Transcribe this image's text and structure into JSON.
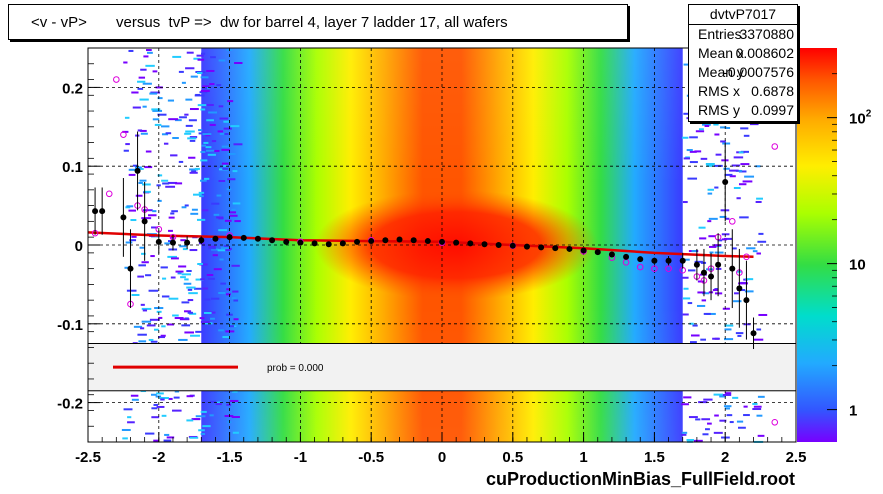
{
  "title": "<v - vP>       versus  tvP =>  dw for barrel 4, layer 7 ladder 17, all wafers",
  "stats": {
    "name": "dvtvP7017",
    "rows": [
      {
        "label": "Entries",
        "value": "3370880"
      },
      {
        "label": "Mean x",
        "value": "0.008602"
      },
      {
        "label": "Mean y",
        "value": "-0.0007576"
      },
      {
        "label": "RMS x",
        "value": "0.6878"
      },
      {
        "label": "RMS y",
        "value": "0.0997"
      }
    ]
  },
  "fit_legend": {
    "text": "prob = 0.000",
    "color": "#e00000"
  },
  "footer": "cuProductionMinBias_FullField.root",
  "chart_data": {
    "type": "heatmap",
    "xlim": [
      -2.5,
      2.5
    ],
    "ylim": [
      -0.25,
      0.25
    ],
    "x_ticks": [
      "-2.5",
      "-2",
      "-1.5",
      "-1",
      "-0.5",
      "0",
      "0.5",
      "1",
      "1.5",
      "2",
      "2.5"
    ],
    "x_tick_values": [
      -2.5,
      -2,
      -1.5,
      -1,
      -0.5,
      0,
      0.5,
      1,
      1.5,
      2,
      2.5
    ],
    "y_ticks": [
      "0.2",
      "0.1",
      "0",
      "-0.1",
      "-0.2"
    ],
    "y_tick_values": [
      0.2,
      0.1,
      0,
      -0.1,
      -0.2
    ],
    "colorbar_ticks": [
      {
        "label": "10",
        "sup": "2",
        "value": 100
      },
      {
        "label": "10",
        "sup": "",
        "value": 10
      },
      {
        "label": "1",
        "sup": "",
        "value": 1
      }
    ],
    "grid": true,
    "mean_points": [
      {
        "x": -2.45,
        "y": 0.043,
        "err": 0.03
      },
      {
        "x": -2.4,
        "y": 0.043,
        "err": 0.03
      },
      {
        "x": -2.25,
        "y": 0.035,
        "err": 0.05
      },
      {
        "x": -2.2,
        "y": -0.03,
        "err": 0.05
      },
      {
        "x": -2.15,
        "y": 0.094,
        "err": 0.05
      },
      {
        "x": -2.1,
        "y": 0.03,
        "err": 0.05
      },
      {
        "x": -2.0,
        "y": 0.004,
        "err": 0.015
      },
      {
        "x": -1.9,
        "y": 0.003,
        "err": 0.01
      },
      {
        "x": -1.8,
        "y": 0.003,
        "err": 0.008
      },
      {
        "x": -1.7,
        "y": 0.006,
        "err": 0.005
      },
      {
        "x": -1.6,
        "y": 0.008,
        "err": 0.003
      },
      {
        "x": -1.5,
        "y": 0.01,
        "err": 0.002
      },
      {
        "x": -1.4,
        "y": 0.009,
        "err": 0.002
      },
      {
        "x": -1.3,
        "y": 0.008,
        "err": 0.002
      },
      {
        "x": -1.2,
        "y": 0.006,
        "err": 0.002
      },
      {
        "x": -1.1,
        "y": 0.004,
        "err": 0.002
      },
      {
        "x": -1.0,
        "y": 0.003,
        "err": 0.002
      },
      {
        "x": -0.9,
        "y": 0.002,
        "err": 0.002
      },
      {
        "x": -0.8,
        "y": 0.001,
        "err": 0.002
      },
      {
        "x": -0.7,
        "y": 0.002,
        "err": 0.002
      },
      {
        "x": -0.6,
        "y": 0.004,
        "err": 0.002
      },
      {
        "x": -0.5,
        "y": 0.005,
        "err": 0.002
      },
      {
        "x": -0.4,
        "y": 0.006,
        "err": 0.002
      },
      {
        "x": -0.3,
        "y": 0.007,
        "err": 0.002
      },
      {
        "x": -0.2,
        "y": 0.006,
        "err": 0.002
      },
      {
        "x": -0.1,
        "y": 0.005,
        "err": 0.002
      },
      {
        "x": 0.0,
        "y": 0.004,
        "err": 0.002
      },
      {
        "x": 0.1,
        "y": 0.003,
        "err": 0.002
      },
      {
        "x": 0.2,
        "y": 0.002,
        "err": 0.002
      },
      {
        "x": 0.3,
        "y": 0.001,
        "err": 0.002
      },
      {
        "x": 0.4,
        "y": 0.0,
        "err": 0.002
      },
      {
        "x": 0.5,
        "y": -0.001,
        "err": 0.002
      },
      {
        "x": 0.6,
        "y": -0.002,
        "err": 0.002
      },
      {
        "x": 0.7,
        "y": -0.003,
        "err": 0.002
      },
      {
        "x": 0.8,
        "y": -0.004,
        "err": 0.002
      },
      {
        "x": 0.9,
        "y": -0.005,
        "err": 0.002
      },
      {
        "x": 1.0,
        "y": -0.007,
        "err": 0.002
      },
      {
        "x": 1.1,
        "y": -0.009,
        "err": 0.002
      },
      {
        "x": 1.2,
        "y": -0.012,
        "err": 0.002
      },
      {
        "x": 1.3,
        "y": -0.015,
        "err": 0.003
      },
      {
        "x": 1.4,
        "y": -0.018,
        "err": 0.003
      },
      {
        "x": 1.5,
        "y": -0.02,
        "err": 0.004
      },
      {
        "x": 1.6,
        "y": -0.02,
        "err": 0.006
      },
      {
        "x": 1.7,
        "y": -0.02,
        "err": 0.01
      },
      {
        "x": 1.8,
        "y": -0.025,
        "err": 0.02
      },
      {
        "x": 1.85,
        "y": -0.035,
        "err": 0.03
      },
      {
        "x": 1.9,
        "y": -0.04,
        "err": 0.03
      },
      {
        "x": 1.95,
        "y": -0.025,
        "err": 0.04
      },
      {
        "x": 2.0,
        "y": 0.08,
        "err": 0.05
      },
      {
        "x": 2.05,
        "y": -0.03,
        "err": 0.05
      },
      {
        "x": 2.1,
        "y": -0.055,
        "err": 0.05
      },
      {
        "x": 2.15,
        "y": -0.07,
        "err": 0.05
      },
      {
        "x": 2.2,
        "y": -0.112,
        "err": 0.02
      }
    ],
    "rms_points": [
      {
        "x": -2.45,
        "y": 0.015
      },
      {
        "x": -2.35,
        "y": 0.065
      },
      {
        "x": -2.3,
        "y": 0.21
      },
      {
        "x": -2.25,
        "y": 0.14
      },
      {
        "x": -2.2,
        "y": -0.075
      },
      {
        "x": -2.15,
        "y": 0.05
      },
      {
        "x": -2.1,
        "y": 0.045
      },
      {
        "x": -2.0,
        "y": 0.02
      },
      {
        "x": -1.9,
        "y": 0.01
      },
      {
        "x": -1.5,
        "y": 0.012
      },
      {
        "x": -1.0,
        "y": 0.004
      },
      {
        "x": -0.5,
        "y": 0.006
      },
      {
        "x": 0.0,
        "y": 0.003
      },
      {
        "x": 0.5,
        "y": -0.001
      },
      {
        "x": 1.0,
        "y": -0.008
      },
      {
        "x": 1.2,
        "y": -0.016
      },
      {
        "x": 1.3,
        "y": -0.022
      },
      {
        "x": 1.4,
        "y": -0.028
      },
      {
        "x": 1.5,
        "y": -0.03
      },
      {
        "x": 1.6,
        "y": -0.03
      },
      {
        "x": 1.7,
        "y": -0.032
      },
      {
        "x": 1.8,
        "y": -0.04
      },
      {
        "x": 1.85,
        "y": -0.045
      },
      {
        "x": 1.9,
        "y": -0.03
      },
      {
        "x": 1.95,
        "y": 0.01
      },
      {
        "x": 2.05,
        "y": 0.03
      },
      {
        "x": 2.1,
        "y": -0.035
      },
      {
        "x": 2.15,
        "y": -0.015
      },
      {
        "x": 2.35,
        "y": 0.125
      },
      {
        "x": 2.35,
        "y": -0.225
      }
    ],
    "fit_line": {
      "x": [
        -2.5,
        -2.0,
        -1.5,
        -1.0,
        -0.5,
        0.0,
        0.5,
        1.0,
        1.5,
        2.0,
        2.2
      ],
      "y": [
        0.016,
        0.012,
        0.01,
        0.006,
        0.005,
        0.004,
        0.0,
        -0.004,
        -0.01,
        -0.014,
        -0.015
      ]
    }
  }
}
